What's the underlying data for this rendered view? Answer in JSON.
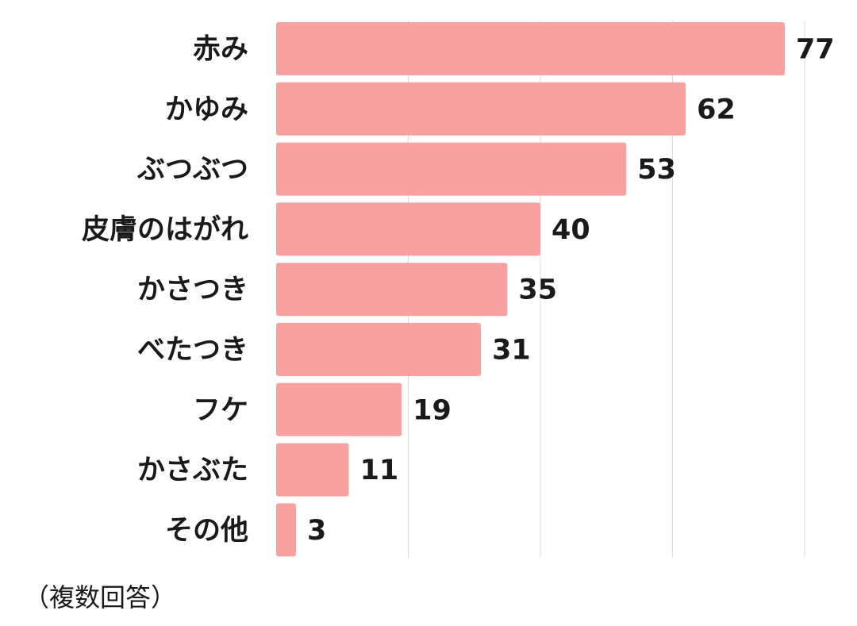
{
  "chart_data": {
    "type": "bar",
    "orientation": "horizontal",
    "categories": [
      "赤み",
      "かゆみ",
      "ぶつぶつ",
      "皮膚のはがれ",
      "かさつき",
      "べたつき",
      "フケ",
      "かさぶた",
      "その他"
    ],
    "values": [
      77,
      62,
      53,
      40,
      35,
      31,
      19,
      11,
      3
    ],
    "xlim": [
      0,
      80
    ],
    "grid": true,
    "bar_color": "#f7a1a1",
    "title": "",
    "xlabel": "",
    "ylabel": ""
  },
  "footnote": "（複数回答）"
}
